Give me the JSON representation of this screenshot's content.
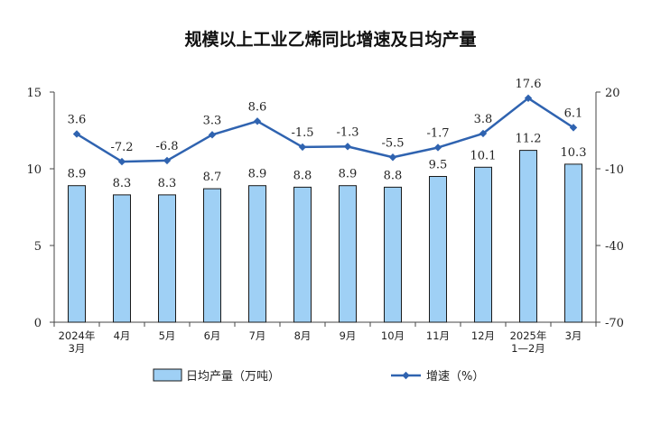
{
  "chart_data": {
    "type": "bar",
    "title": "规模以上工业乙烯同比增速及日均产量",
    "categories": [
      [
        "2024年",
        "3月"
      ],
      [
        "4月"
      ],
      [
        "5月"
      ],
      [
        "6月"
      ],
      [
        "7月"
      ],
      [
        "8月"
      ],
      [
        "9月"
      ],
      [
        "10月"
      ],
      [
        "11月"
      ],
      [
        "12月"
      ],
      [
        "2025年",
        "1—2月"
      ],
      [
        "3月"
      ]
    ],
    "series": [
      {
        "name": "日均产量（万吨）",
        "type": "bar",
        "axis": "left",
        "values": [
          8.9,
          8.3,
          8.3,
          8.7,
          8.9,
          8.8,
          8.9,
          8.8,
          9.5,
          10.1,
          11.2,
          10.3
        ],
        "color": "#9fd0f5"
      },
      {
        "name": "增速（%）",
        "type": "line",
        "axis": "right",
        "values": [
          3.6,
          -7.2,
          -6.8,
          3.3,
          8.6,
          -1.5,
          -1.3,
          -5.5,
          -1.7,
          3.8,
          17.6,
          6.1
        ],
        "color": "#2f63b0"
      }
    ],
    "left_axis": {
      "ylim": [
        0,
        15
      ],
      "ticks": [
        0,
        5,
        10,
        15
      ]
    },
    "right_axis": {
      "ylim": [
        -70,
        20
      ],
      "ticks": [
        -70,
        -40,
        -10,
        20
      ]
    },
    "grid": false,
    "legend_position": "bottom"
  }
}
